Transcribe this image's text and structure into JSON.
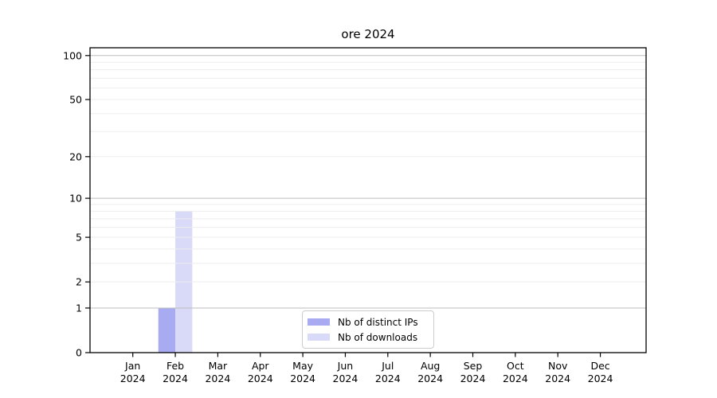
{
  "chart_data": {
    "type": "bar",
    "title": "ore 2024",
    "categories": [
      "Jan 2024",
      "Feb 2024",
      "Mar 2024",
      "Apr 2024",
      "May 2024",
      "Jun 2024",
      "Jul 2024",
      "Aug 2024",
      "Sep 2024",
      "Oct 2024",
      "Nov 2024",
      "Dec 2024"
    ],
    "x_tick_months": [
      "Jan",
      "Feb",
      "Mar",
      "Apr",
      "May",
      "Jun",
      "Jul",
      "Aug",
      "Sep",
      "Oct",
      "Nov",
      "Dec"
    ],
    "x_tick_year": "2024",
    "series": [
      {
        "name": "Nb of distinct IPs",
        "color": "#a8aaf2",
        "values": [
          0,
          1,
          0,
          0,
          0,
          0,
          0,
          0,
          0,
          0,
          0,
          0
        ]
      },
      {
        "name": "Nb of downloads",
        "color": "#d9daf8",
        "values": [
          0,
          8,
          0,
          0,
          0,
          0,
          0,
          0,
          0,
          0,
          0,
          0
        ]
      }
    ],
    "yscale": "log1p",
    "y_major_ticks": [
      0,
      1,
      2,
      5,
      10,
      20,
      50,
      100
    ],
    "y_minor_gridlines": [
      2,
      3,
      4,
      5,
      6,
      7,
      8,
      9,
      20,
      30,
      40,
      50,
      60,
      70,
      80,
      90
    ],
    "y_power10_gridlines": [
      1,
      10,
      100
    ],
    "ylim": [
      0,
      113
    ],
    "xlabel": "",
    "ylabel": "",
    "grid": true,
    "legend_position": "lower center"
  },
  "colors": {
    "background": "#ffffff",
    "bar_distinct_ips": "#a8aaf2",
    "bar_downloads": "#d9daf8",
    "grid_minor": "#ededed",
    "grid_major": "#bdbdbd",
    "axis_line": "#000000",
    "tick_text": "#000000",
    "legend_border": "#cccccc"
  }
}
